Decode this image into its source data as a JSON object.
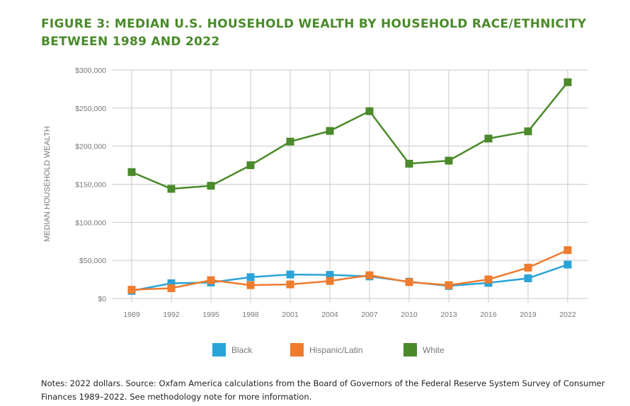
{
  "title": "FIGURE 3: MEDIAN U.S. HOUSEHOLD WEALTH BY HOUSEHOLD RACE/ETHNICITY BETWEEN 1989 AND 2022",
  "notes": "Notes: 2022 dollars. Source: Oxfam America calculations from the Board of Governors of the Federal Reserve System Survey of Consumer Finances 1989–2022. See methodology note for more information.",
  "chart_data": {
    "type": "line",
    "title": "FIGURE 3: MEDIAN U.S. HOUSEHOLD WEALTH BY HOUSEHOLD RACE/ETHNICITY BETWEEN 1989 AND 2022",
    "xlabel": "",
    "ylabel": "MEDIAN HOUSEHOLD WEALTH",
    "ylim": [
      0,
      300000
    ],
    "y_ticks": [
      0,
      50000,
      100000,
      150000,
      200000,
      250000,
      300000
    ],
    "y_tick_labels": [
      "$0",
      "$50,000",
      "$100,000",
      "$150,000",
      "$200,000",
      "$250,000",
      "$300,000"
    ],
    "grid": true,
    "legend_position": "bottom",
    "categories": [
      "1989",
      "1992",
      "1995",
      "1998",
      "2001",
      "2004",
      "2007",
      "2010",
      "2013",
      "2016",
      "2019",
      "2022"
    ],
    "series": [
      {
        "name": "Black",
        "color": "#2aa3d8",
        "values": [
          10000,
          20000,
          21000,
          28000,
          31500,
          31000,
          29000,
          22000,
          16500,
          20500,
          26500,
          44500
        ]
      },
      {
        "name": "Hispanic/Latin",
        "color": "#ef7b2e",
        "values": [
          11500,
          13500,
          24000,
          17500,
          18500,
          23000,
          30500,
          21500,
          17500,
          25000,
          40500,
          63500
        ]
      },
      {
        "name": "White",
        "color": "#4a8a2a",
        "values": [
          166000,
          144000,
          148000,
          175000,
          206000,
          220000,
          246000,
          177000,
          181000,
          210000,
          219500,
          284000
        ]
      }
    ]
  }
}
